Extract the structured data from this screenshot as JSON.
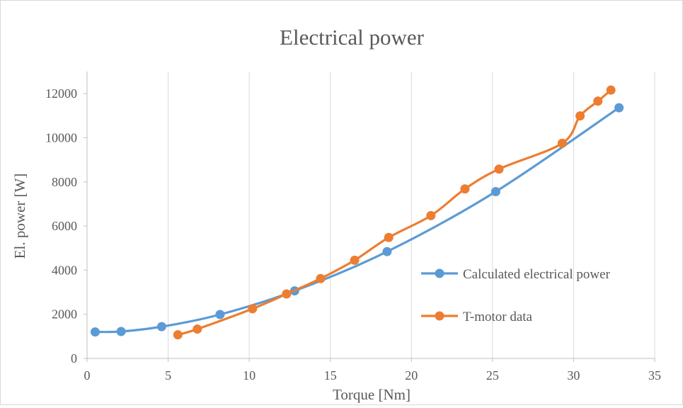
{
  "chart_data": {
    "type": "scatter",
    "title": "Electrical power",
    "xlabel": "Torque [Nm]",
    "ylabel": "El. power [W]",
    "xlim": [
      0,
      35
    ],
    "ylim": [
      0,
      13000
    ],
    "x_ticks": [
      0,
      5,
      10,
      15,
      20,
      25,
      30,
      35
    ],
    "y_ticks": [
      0,
      2000,
      4000,
      6000,
      8000,
      10000,
      12000
    ],
    "grid": "vertical",
    "smooth_lines": true,
    "legend_position": "right",
    "series": [
      {
        "name": "Calculated electrical power",
        "color": "#5b9bd5",
        "x": [
          0.5,
          2.1,
          4.6,
          8.2,
          12.8,
          18.5,
          25.2,
          32.8
        ],
        "y": [
          1200,
          1220,
          1440,
          1990,
          3060,
          4840,
          7560,
          11360
        ]
      },
      {
        "name": "T-motor data",
        "color": "#ed7d31",
        "x": [
          5.6,
          6.8,
          10.2,
          12.3,
          14.4,
          16.5,
          18.6,
          21.2,
          23.3,
          25.4,
          29.3,
          30.4,
          31.5,
          32.3
        ],
        "y": [
          1070,
          1330,
          2250,
          2920,
          3620,
          4450,
          5480,
          6470,
          7680,
          8580,
          9750,
          10990,
          11660,
          12160
        ]
      }
    ]
  }
}
